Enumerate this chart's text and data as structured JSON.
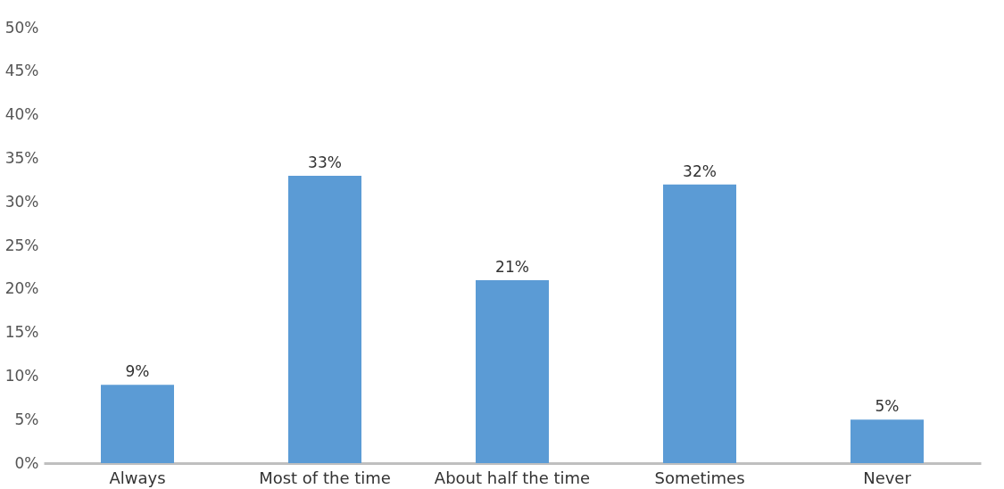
{
  "chart_data": {
    "type": "bar",
    "categories": [
      "Always",
      "Most of the time",
      "About half the time",
      "Sometimes",
      "Never"
    ],
    "values": [
      9,
      33,
      21,
      32,
      5
    ],
    "value_labels": [
      "9%",
      "33%",
      "21%",
      "32%",
      "5%"
    ],
    "color": "#5b9bd5",
    "ylim": [
      0,
      50
    ],
    "yticks": [
      {
        "value": 0,
        "label": "0%"
      },
      {
        "value": 5,
        "label": "5%"
      },
      {
        "value": 10,
        "label": "10%"
      },
      {
        "value": 15,
        "label": "15%"
      },
      {
        "value": 20,
        "label": "20%"
      },
      {
        "value": 25,
        "label": "25%"
      },
      {
        "value": 30,
        "label": "30%"
      },
      {
        "value": 35,
        "label": "35%"
      },
      {
        "value": 40,
        "label": "40%"
      },
      {
        "value": 45,
        "label": "45%"
      },
      {
        "value": 50,
        "label": "50%"
      }
    ],
    "grid": false
  }
}
